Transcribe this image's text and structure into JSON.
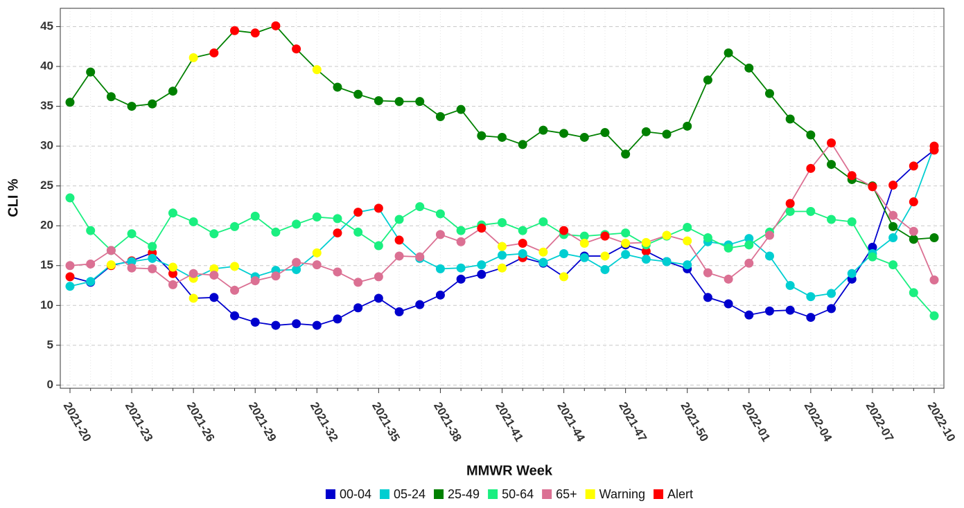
{
  "chart_data": {
    "type": "line",
    "x_label": "MMWR Week",
    "y_label": "CLI %",
    "categories": [
      "2021-20",
      null,
      null,
      "2021-23",
      null,
      null,
      "2021-26",
      null,
      null,
      "2021-29",
      null,
      null,
      "2021-32",
      null,
      null,
      "2021-35",
      null,
      null,
      "2021-38",
      null,
      null,
      "2021-41",
      null,
      null,
      "2021-44",
      null,
      null,
      "2021-47",
      null,
      null,
      "2021-50",
      null,
      null,
      "2022-01",
      null,
      null,
      "2022-04",
      null,
      null,
      "2022-07",
      null,
      null,
      "2022-10"
    ],
    "ylim": [
      -0.4,
      47.3
    ],
    "yticks": [
      0,
      5,
      10,
      15,
      20,
      25,
      30,
      35,
      40,
      45
    ],
    "grid": true,
    "markers": [
      {
        "name": "Warning",
        "color": "#ffff00"
      },
      {
        "name": "Alert",
        "color": "#ff0000"
      }
    ],
    "series": [
      {
        "name": "00-04",
        "color": "#0000cd",
        "values": [
          13.6,
          12.9,
          15.0,
          15.6,
          16.6,
          14.0,
          10.9,
          11.0,
          8.7,
          7.9,
          7.5,
          7.7,
          7.5,
          8.3,
          9.7,
          10.9,
          9.2,
          10.1,
          11.3,
          13.3,
          13.9,
          14.7,
          16.0,
          15.3,
          13.6,
          16.2,
          16.2,
          17.6,
          16.8,
          15.5,
          14.6,
          11.0,
          10.2,
          8.8,
          9.3,
          9.4,
          8.5,
          9.6,
          13.3,
          17.3,
          25.1,
          27.5,
          29.5
        ],
        "status": [
          "Alert",
          null,
          "Alert",
          "Alert",
          "Alert",
          "Alert",
          "Warning",
          null,
          null,
          null,
          null,
          null,
          null,
          null,
          null,
          null,
          null,
          null,
          null,
          null,
          null,
          "Warning",
          "Alert",
          null,
          "Warning",
          null,
          "Warning",
          null,
          "Alert",
          null,
          null,
          null,
          null,
          null,
          null,
          null,
          null,
          null,
          null,
          null,
          "Alert",
          "Alert",
          "Alert"
        ]
      },
      {
        "name": "05-24",
        "color": "#00ced1",
        "values": [
          12.4,
          13.0,
          15.1,
          15.5,
          15.9,
          14.8,
          13.4,
          14.6,
          14.9,
          13.6,
          14.4,
          14.5,
          16.6,
          19.1,
          21.7,
          22.2,
          18.2,
          15.9,
          14.6,
          14.7,
          15.1,
          16.3,
          16.5,
          15.4,
          16.5,
          16.0,
          14.5,
          16.4,
          15.8,
          15.5,
          15.1,
          18.0,
          17.6,
          18.4,
          16.2,
          12.5,
          11.1,
          11.5,
          14.0,
          16.5,
          18.5,
          23.0,
          30.0
        ],
        "status": [
          null,
          null,
          "Warning",
          null,
          null,
          "Warning",
          "Warning",
          "Warning",
          "Warning",
          null,
          null,
          null,
          "Warning",
          "Alert",
          "Alert",
          "Alert",
          "Alert",
          null,
          null,
          null,
          null,
          null,
          null,
          null,
          null,
          null,
          null,
          null,
          null,
          null,
          null,
          null,
          null,
          null,
          null,
          null,
          null,
          null,
          null,
          null,
          null,
          "Alert",
          "Alert"
        ]
      },
      {
        "name": "25-49",
        "color": "#008000",
        "values": [
          35.5,
          39.3,
          36.2,
          35.0,
          35.3,
          36.9,
          41.1,
          41.7,
          44.5,
          44.2,
          45.1,
          42.2,
          39.6,
          37.4,
          36.5,
          35.7,
          35.6,
          35.6,
          33.7,
          34.6,
          31.3,
          31.1,
          30.2,
          32.0,
          31.6,
          31.1,
          31.7,
          29.0,
          31.8,
          31.5,
          32.5,
          38.3,
          41.7,
          39.8,
          36.6,
          33.4,
          31.4,
          27.7,
          25.8,
          25.0,
          19.9,
          18.3,
          18.5
        ],
        "status": [
          null,
          null,
          null,
          null,
          null,
          null,
          "Warning",
          "Alert",
          "Alert",
          "Alert",
          "Alert",
          "Alert",
          "Warning",
          null,
          null,
          null,
          null,
          null,
          null,
          null,
          null,
          null,
          null,
          null,
          null,
          null,
          null,
          null,
          null,
          null,
          null,
          null,
          null,
          null,
          null,
          null,
          null,
          null,
          null,
          null,
          null,
          null,
          null
        ]
      },
      {
        "name": "50-64",
        "color": "#1aef80",
        "values": [
          23.5,
          19.4,
          16.9,
          19.0,
          17.4,
          21.6,
          20.5,
          19.0,
          19.9,
          21.2,
          19.2,
          20.2,
          21.1,
          20.9,
          19.2,
          17.5,
          20.8,
          22.4,
          21.5,
          19.4,
          20.1,
          20.4,
          19.4,
          20.5,
          18.9,
          18.7,
          18.9,
          19.1,
          17.6,
          18.7,
          19.8,
          18.5,
          17.2,
          17.6,
          19.2,
          21.8,
          21.8,
          20.8,
          20.5,
          16.1,
          15.1,
          11.6,
          8.7
        ],
        "status": [
          null,
          null,
          null,
          null,
          null,
          null,
          null,
          null,
          null,
          null,
          null,
          null,
          null,
          null,
          null,
          null,
          null,
          null,
          null,
          null,
          null,
          null,
          null,
          null,
          null,
          null,
          null,
          null,
          null,
          null,
          null,
          null,
          null,
          null,
          null,
          null,
          null,
          null,
          null,
          null,
          null,
          null,
          null
        ]
      },
      {
        "name": "65+",
        "color": "#db7093",
        "values": [
          15.0,
          15.2,
          16.9,
          14.7,
          14.6,
          12.6,
          14.0,
          13.8,
          11.9,
          13.1,
          13.7,
          15.4,
          15.1,
          14.2,
          12.9,
          13.6,
          16.2,
          16.1,
          18.9,
          18.0,
          19.7,
          17.4,
          17.8,
          16.7,
          19.4,
          17.8,
          18.7,
          17.8,
          17.9,
          18.8,
          18.1,
          14.1,
          13.3,
          15.3,
          18.8,
          22.8,
          27.2,
          30.4,
          26.3,
          24.9,
          21.3,
          19.3,
          13.2
        ],
        "status": [
          null,
          null,
          null,
          null,
          null,
          null,
          null,
          null,
          null,
          null,
          null,
          null,
          null,
          null,
          null,
          null,
          null,
          null,
          null,
          null,
          "Alert",
          "Warning",
          "Alert",
          "Warning",
          "Alert",
          "Warning",
          "Alert",
          "Warning",
          "Warning",
          "Warning",
          "Warning",
          null,
          null,
          null,
          null,
          "Alert",
          "Alert",
          "Alert",
          "Alert",
          "Alert",
          null,
          null,
          null
        ]
      }
    ]
  }
}
